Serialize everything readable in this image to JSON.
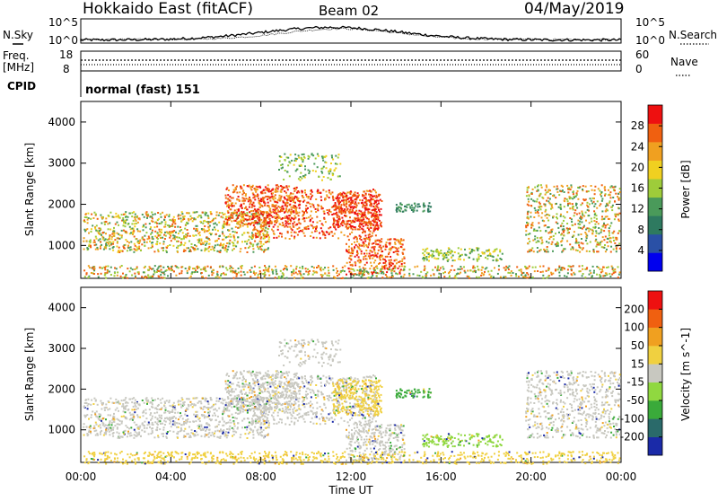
{
  "header": {
    "title": "Hokkaido East (fitACF)",
    "beam": "Beam 02",
    "date": "04/May/2019"
  },
  "top_panels": {
    "noise": {
      "left_label": "N.Sky",
      "right_label": "N.Search",
      "left_ticks": [
        "10^5",
        "10^0"
      ],
      "right_ticks": [
        "10^5",
        "10^0"
      ]
    },
    "freq": {
      "left_label": "Freq.",
      "left_unit": "[MHz]",
      "left_ticks": [
        "18",
        "8"
      ],
      "right_label": "Nave",
      "right_ticks": [
        "60",
        "0"
      ]
    },
    "cpid": {
      "label": "CPID",
      "text": "normal (fast) 151"
    }
  },
  "x_axis": {
    "label": "Time UT",
    "ticks": [
      "00:00",
      "04:00",
      "08:00",
      "12:00",
      "16:00",
      "20:00",
      "00:00"
    ]
  },
  "chart_data": [
    {
      "type": "heatmap",
      "title": "",
      "ylabel": "Slant Range [km]",
      "xlabel": "Time UT",
      "ylim": [
        200,
        4500
      ],
      "y_ticks": [
        "4000",
        "3000",
        "2000",
        "1000"
      ],
      "colorbar": {
        "label": "Power [dB]",
        "ticks": [
          "28",
          "24",
          "20",
          "16",
          "12",
          "8",
          "4"
        ],
        "colors": [
          "#0000ee",
          "#2a50a6",
          "#2e7a60",
          "#4a9a5a",
          "#9ecc3a",
          "#f0d020",
          "#f0a020",
          "#f06010",
          "#ee1010"
        ]
      }
    },
    {
      "type": "heatmap",
      "title": "",
      "ylabel": "Slant Range [km]",
      "xlabel": "Time UT",
      "ylim": [
        200,
        4500
      ],
      "y_ticks": [
        "4000",
        "3000",
        "2000",
        "1000"
      ],
      "colorbar": {
        "label": "Velocity [m s^-1]",
        "ticks": [
          "200",
          "100",
          "50",
          "15",
          "-15",
          "-50",
          "-100",
          "-200"
        ],
        "colors": [
          "#1a2aa8",
          "#2a6a6a",
          "#3aaa3a",
          "#90d840",
          "#c8c8c0",
          "#f0d040",
          "#f0a020",
          "#f06010",
          "#ee1010"
        ]
      }
    }
  ]
}
